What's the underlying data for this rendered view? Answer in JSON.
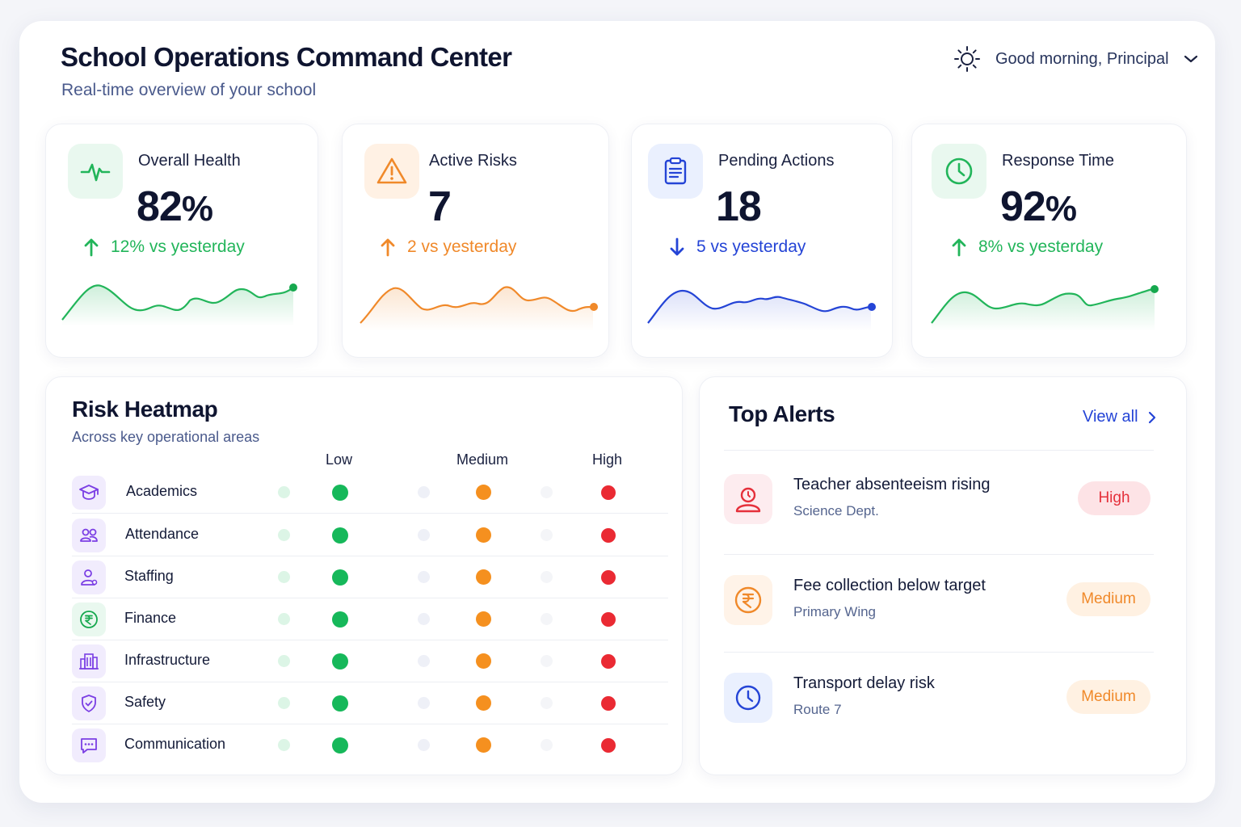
{
  "header": {
    "title": "School Operations Command Center",
    "subtitle": "Real-time overview of your school",
    "greeting": "Good morning, Principal",
    "greeting_icon": "sun-icon",
    "menu_icon": "chevron-down-icon"
  },
  "stats": [
    {
      "label": "Overall Health",
      "value": "82",
      "unit": "%",
      "delta": "12% vs yesterday",
      "direction": "up",
      "icon": "heartbeat-icon",
      "color": "#22b55a"
    },
    {
      "label": "Active Risks",
      "value": "7",
      "unit": "",
      "delta": "2 vs yesterday",
      "direction": "up",
      "icon": "warning-icon",
      "color": "#f0892a"
    },
    {
      "label": "Pending Actions",
      "value": "18",
      "unit": "",
      "delta": "5 vs yesterday",
      "direction": "down",
      "icon": "clipboard-icon",
      "color": "#2444d6"
    },
    {
      "label": "Response Time",
      "value": "92",
      "unit": "%",
      "delta": "8% vs yesterday",
      "direction": "up",
      "icon": "clock-icon",
      "color": "#22b55a"
    }
  ],
  "heatmap": {
    "title": "Risk Heatmap",
    "subtitle": "Across key operational areas",
    "levels": [
      "Low",
      "Medium",
      "High"
    ],
    "level_colors": {
      "low": "#16b85a",
      "medium": "#f5901f",
      "high": "#ea2a33"
    },
    "areas": [
      {
        "name": "Academics",
        "icon": "graduation-cap-icon"
      },
      {
        "name": "Attendance",
        "icon": "users-icon"
      },
      {
        "name": "Staffing",
        "icon": "user-icon"
      },
      {
        "name": "Finance",
        "icon": "rupee-icon"
      },
      {
        "name": "Infrastructure",
        "icon": "building-icon"
      },
      {
        "name": "Safety",
        "icon": "shield-icon"
      },
      {
        "name": "Communication",
        "icon": "chat-icon"
      }
    ]
  },
  "alerts": {
    "title": "Top Alerts",
    "view_all": "View all",
    "items": [
      {
        "title": "Teacher absenteeism rising",
        "subtitle": "Science Dept.",
        "severity": "High",
        "icon": "teacher-icon"
      },
      {
        "title": "Fee collection below target",
        "subtitle": "Primary Wing",
        "severity": "Medium",
        "icon": "rupee-icon"
      },
      {
        "title": "Transport delay risk",
        "subtitle": "Route 7",
        "severity": "Medium",
        "icon": "clock-icon"
      }
    ]
  }
}
